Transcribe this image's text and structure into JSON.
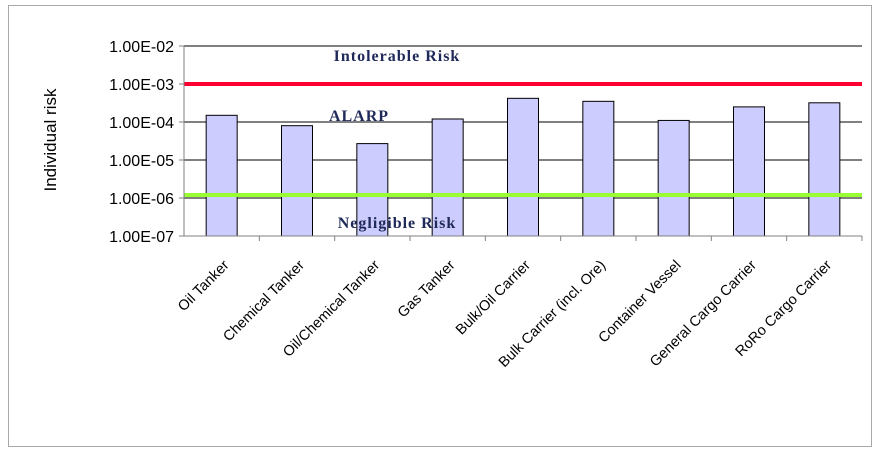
{
  "chart_data": {
    "type": "bar",
    "ylabel": "Individual risk",
    "yscale": "log",
    "ylim": [
      1e-07,
      0.01
    ],
    "yticks": [
      "1.00E-02",
      "1.00E-03",
      "1.00E-04",
      "1.00E-05",
      "1.00E-06",
      "1.00E-07"
    ],
    "categories": [
      "Oil Tanker",
      "Chemical Tanker",
      "Oil/Chemical Tanker",
      "Gas Tanker",
      "Bulk/Oil Carrier",
      "Bulk Carrier (incl. Ore)",
      "Container Vessel",
      "General Cargo Carrier",
      "RoRo Cargo Carrier"
    ],
    "values": [
      0.00015,
      8e-05,
      2.7e-05,
      0.00012,
      0.00042,
      0.00035,
      0.00011,
      0.00025,
      0.00032
    ],
    "bar_color": "#ccccff",
    "reference_lines": [
      {
        "value": 0.001,
        "color": "#ff0033",
        "label": "Intolerable Risk"
      },
      {
        "value": 1.2e-06,
        "color": "#99ff33",
        "label": "Negligible Risk"
      }
    ],
    "annotations": [
      "ALARP"
    ],
    "grid": true
  }
}
